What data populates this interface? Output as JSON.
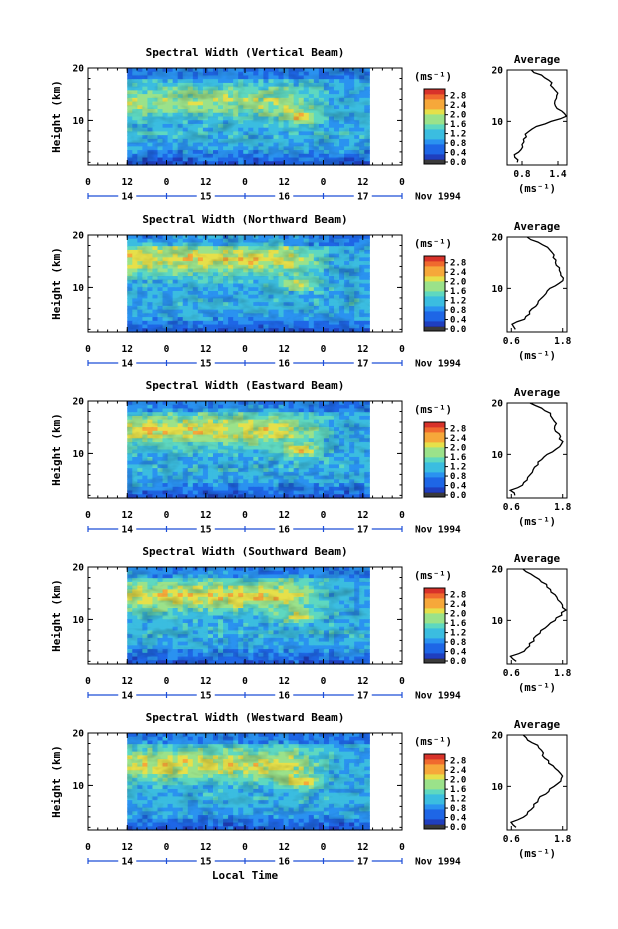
{
  "figure": {
    "xlabel": "Local Time",
    "date_label": "Nov 1994",
    "height_label": "Height (km)",
    "unit_label": "(ms⁻¹)",
    "average_title": "Average"
  },
  "chart_data": [
    {
      "type": "heatmap",
      "title": "Spectral Width (Vertical Beam)",
      "ylabel": "Height (km)",
      "ylim": [
        1.5,
        20
      ],
      "yticks": [
        10,
        20
      ],
      "hour_ticks": [
        "0",
        "12",
        "0",
        "12",
        "0",
        "12",
        "0",
        "12",
        "0"
      ],
      "day_ticks": [
        "14",
        "15",
        "16",
        "17"
      ],
      "data_start_hour": 12,
      "data_end_hour": 86,
      "colorbar": {
        "ticks": [
          "0.0",
          "0.4",
          "0.8",
          "1.2",
          "1.6",
          "2.0",
          "2.4",
          "2.8"
        ],
        "range": [
          0,
          3.0
        ]
      },
      "profile": {
        "xticks": [
          "0.8",
          "1.4"
        ],
        "xlim": [
          0.55,
          1.55
        ],
        "height": [
          2,
          3,
          4,
          5,
          6,
          7,
          8,
          9,
          10,
          11,
          12,
          13,
          14,
          15,
          16,
          17,
          18,
          19,
          20
        ],
        "value": [
          0.75,
          0.65,
          0.75,
          0.8,
          0.82,
          0.85,
          0.9,
          1.05,
          1.3,
          1.55,
          1.45,
          1.35,
          1.35,
          1.4,
          1.35,
          1.3,
          1.25,
          1.1,
          0.95
        ]
      }
    },
    {
      "type": "heatmap",
      "title": "Spectral Width (Northward Beam)",
      "ylabel": "Height (km)",
      "ylim": [
        1.5,
        20
      ],
      "yticks": [
        10,
        20
      ],
      "hour_ticks": [
        "0",
        "12",
        "0",
        "12",
        "0",
        "12",
        "0",
        "12",
        "0"
      ],
      "day_ticks": [
        "14",
        "15",
        "16",
        "17"
      ],
      "data_start_hour": 12,
      "data_end_hour": 86,
      "colorbar": {
        "ticks": [
          "0.0",
          "0.4",
          "0.8",
          "1.2",
          "1.6",
          "2.0",
          "2.4",
          "2.8"
        ],
        "range": [
          0,
          3.0
        ]
      },
      "profile": {
        "xticks": [
          "0.6",
          "1.8"
        ],
        "xlim": [
          0.5,
          1.9
        ],
        "height": [
          2,
          3,
          4,
          5,
          6,
          7,
          8,
          9,
          10,
          11,
          12,
          13,
          14,
          15,
          16,
          17,
          18,
          19,
          20
        ],
        "value": [
          0.7,
          0.6,
          0.9,
          1.0,
          1.1,
          1.2,
          1.3,
          1.4,
          1.5,
          1.75,
          1.8,
          1.75,
          1.7,
          1.65,
          1.6,
          1.55,
          1.45,
          1.2,
          0.95
        ]
      }
    },
    {
      "type": "heatmap",
      "title": "Spectral Width (Eastward Beam)",
      "ylabel": "Height (km)",
      "ylim": [
        1.5,
        20
      ],
      "yticks": [
        10,
        20
      ],
      "hour_ticks": [
        "0",
        "12",
        "0",
        "12",
        "0",
        "12",
        "0",
        "12",
        "0"
      ],
      "day_ticks": [
        "14",
        "15",
        "16",
        "17"
      ],
      "data_start_hour": 12,
      "data_end_hour": 86,
      "colorbar": {
        "ticks": [
          "0.0",
          "0.4",
          "0.8",
          "1.2",
          "1.6",
          "2.0",
          "2.4",
          "2.8"
        ],
        "range": [
          0,
          3.0
        ]
      },
      "profile": {
        "xticks": [
          "0.6",
          "1.8"
        ],
        "xlim": [
          0.5,
          1.9
        ],
        "height": [
          2,
          3,
          4,
          5,
          6,
          7,
          8,
          9,
          10,
          11,
          12,
          13,
          14,
          15,
          16,
          17,
          18,
          19,
          20
        ],
        "value": [
          0.7,
          0.6,
          0.85,
          0.95,
          1.05,
          1.1,
          1.2,
          1.3,
          1.45,
          1.65,
          1.8,
          1.75,
          1.7,
          1.6,
          1.65,
          1.55,
          1.5,
          1.3,
          1.05
        ]
      }
    },
    {
      "type": "heatmap",
      "title": "Spectral Width (Southward Beam)",
      "ylabel": "Height (km)",
      "ylim": [
        1.5,
        20
      ],
      "yticks": [
        10,
        20
      ],
      "hour_ticks": [
        "0",
        "12",
        "0",
        "12",
        "0",
        "12",
        "0",
        "12",
        "0"
      ],
      "day_ticks": [
        "14",
        "15",
        "16",
        "17"
      ],
      "data_start_hour": 12,
      "data_end_hour": 86,
      "colorbar": {
        "ticks": [
          "0.0",
          "0.4",
          "0.8",
          "1.2",
          "1.6",
          "2.0",
          "2.4",
          "2.8"
        ],
        "range": [
          0,
          3.0
        ]
      },
      "profile": {
        "xticks": [
          "0.6",
          "1.8"
        ],
        "xlim": [
          0.5,
          1.9
        ],
        "height": [
          2,
          3,
          4,
          5,
          6,
          7,
          8,
          9,
          10,
          11,
          12,
          13,
          14,
          15,
          16,
          17,
          18,
          19,
          20
        ],
        "value": [
          0.7,
          0.6,
          0.9,
          1.0,
          1.1,
          1.2,
          1.3,
          1.45,
          1.6,
          1.75,
          1.85,
          1.8,
          1.7,
          1.6,
          1.5,
          1.4,
          1.25,
          1.05,
          0.85
        ]
      }
    },
    {
      "type": "heatmap",
      "title": "Spectral Width (Westward Beam)",
      "ylabel": "Height (km)",
      "ylim": [
        1.5,
        20
      ],
      "yticks": [
        10,
        20
      ],
      "hour_ticks": [
        "0",
        "12",
        "0",
        "12",
        "0",
        "12",
        "0",
        "12",
        "0"
      ],
      "day_ticks": [
        "14",
        "15",
        "16",
        "17"
      ],
      "data_start_hour": 12,
      "data_end_hour": 86,
      "colorbar": {
        "ticks": [
          "0.0",
          "0.4",
          "0.8",
          "1.2",
          "1.6",
          "2.0",
          "2.4",
          "2.8"
        ],
        "range": [
          0,
          3.0
        ]
      },
      "profile": {
        "xticks": [
          "0.6",
          "1.8"
        ],
        "xlim": [
          0.5,
          1.9
        ],
        "height": [
          2,
          3,
          4,
          5,
          6,
          7,
          8,
          9,
          10,
          11,
          12,
          13,
          14,
          15,
          16,
          17,
          18,
          19,
          20
        ],
        "value": [
          0.7,
          0.6,
          0.9,
          1.0,
          1.1,
          1.2,
          1.3,
          1.45,
          1.6,
          1.75,
          1.8,
          1.7,
          1.55,
          1.45,
          1.35,
          1.3,
          1.2,
          1.0,
          0.85
        ]
      }
    }
  ],
  "colors": {
    "colormap": [
      "#2b2c78",
      "#1f3fbf",
      "#1e66e6",
      "#2a92f0",
      "#3bbde0",
      "#5ed8c0",
      "#9be28a",
      "#e6e04a",
      "#f6a83a",
      "#f06a2e",
      "#d8322a"
    ],
    "axis": "#000000",
    "day_marker": "#1e4fd8"
  }
}
